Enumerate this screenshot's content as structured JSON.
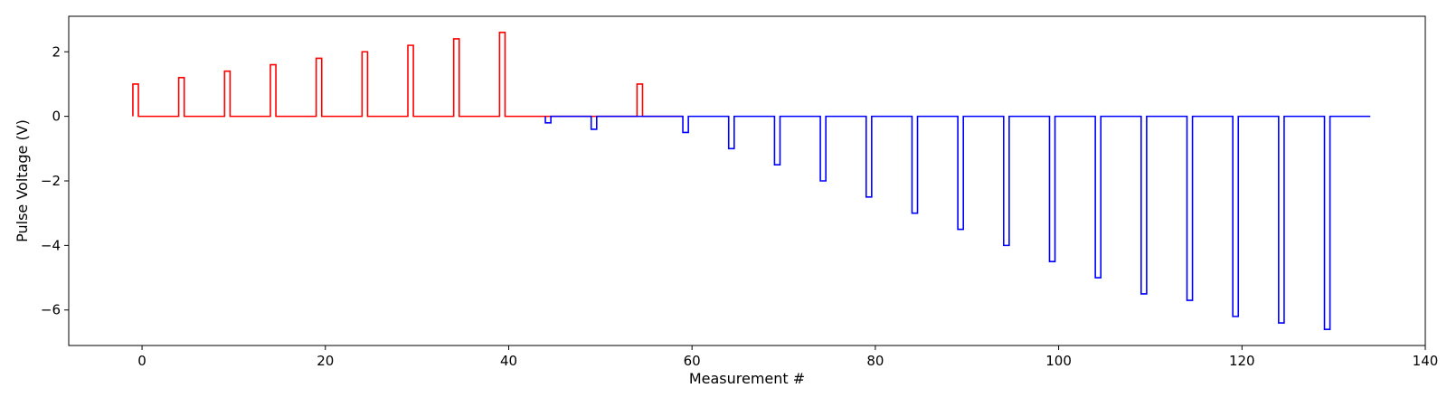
{
  "chart_data": {
    "type": "line",
    "title": "",
    "xlabel": "Measurement #",
    "ylabel": "Pulse Voltage (V)",
    "xlim": [
      -8,
      140
    ],
    "ylim": [
      -7.1,
      3.1
    ],
    "xticks": [
      0,
      20,
      40,
      60,
      80,
      100,
      120,
      140
    ],
    "yticks": [
      2,
      0,
      -2,
      -4,
      -6
    ],
    "grid": false,
    "legend": "none",
    "pulse_width": 0.6,
    "series": [
      {
        "color": "#ff0000",
        "start": -1,
        "end": 59,
        "pulses": [
          {
            "x": -1,
            "v": 1.0
          },
          {
            "x": 4,
            "v": 1.2
          },
          {
            "x": 9,
            "v": 1.4
          },
          {
            "x": 14,
            "v": 1.6
          },
          {
            "x": 19,
            "v": 1.8
          },
          {
            "x": 24,
            "v": 2.0
          },
          {
            "x": 29,
            "v": 2.2
          },
          {
            "x": 34,
            "v": 2.4
          },
          {
            "x": 39,
            "v": 2.6
          },
          {
            "x": 54,
            "v": 1.0
          }
        ]
      },
      {
        "color": "#0000ff",
        "start": 44,
        "end": 134,
        "pulses": [
          {
            "x": 44,
            "v": -0.2
          },
          {
            "x": 49,
            "v": -0.4
          },
          {
            "x": 59,
            "v": -0.5
          },
          {
            "x": 64,
            "v": -1.0
          },
          {
            "x": 69,
            "v": -1.5
          },
          {
            "x": 74,
            "v": -2.0
          },
          {
            "x": 79,
            "v": -2.5
          },
          {
            "x": 84,
            "v": -3.0
          },
          {
            "x": 89,
            "v": -3.5
          },
          {
            "x": 94,
            "v": -4.0
          },
          {
            "x": 99,
            "v": -4.5
          },
          {
            "x": 104,
            "v": -5.0
          },
          {
            "x": 109,
            "v": -5.5
          },
          {
            "x": 114,
            "v": -5.7
          },
          {
            "x": 119,
            "v": -6.2
          },
          {
            "x": 124,
            "v": -6.4
          },
          {
            "x": 129,
            "v": -6.6
          }
        ]
      }
    ]
  }
}
